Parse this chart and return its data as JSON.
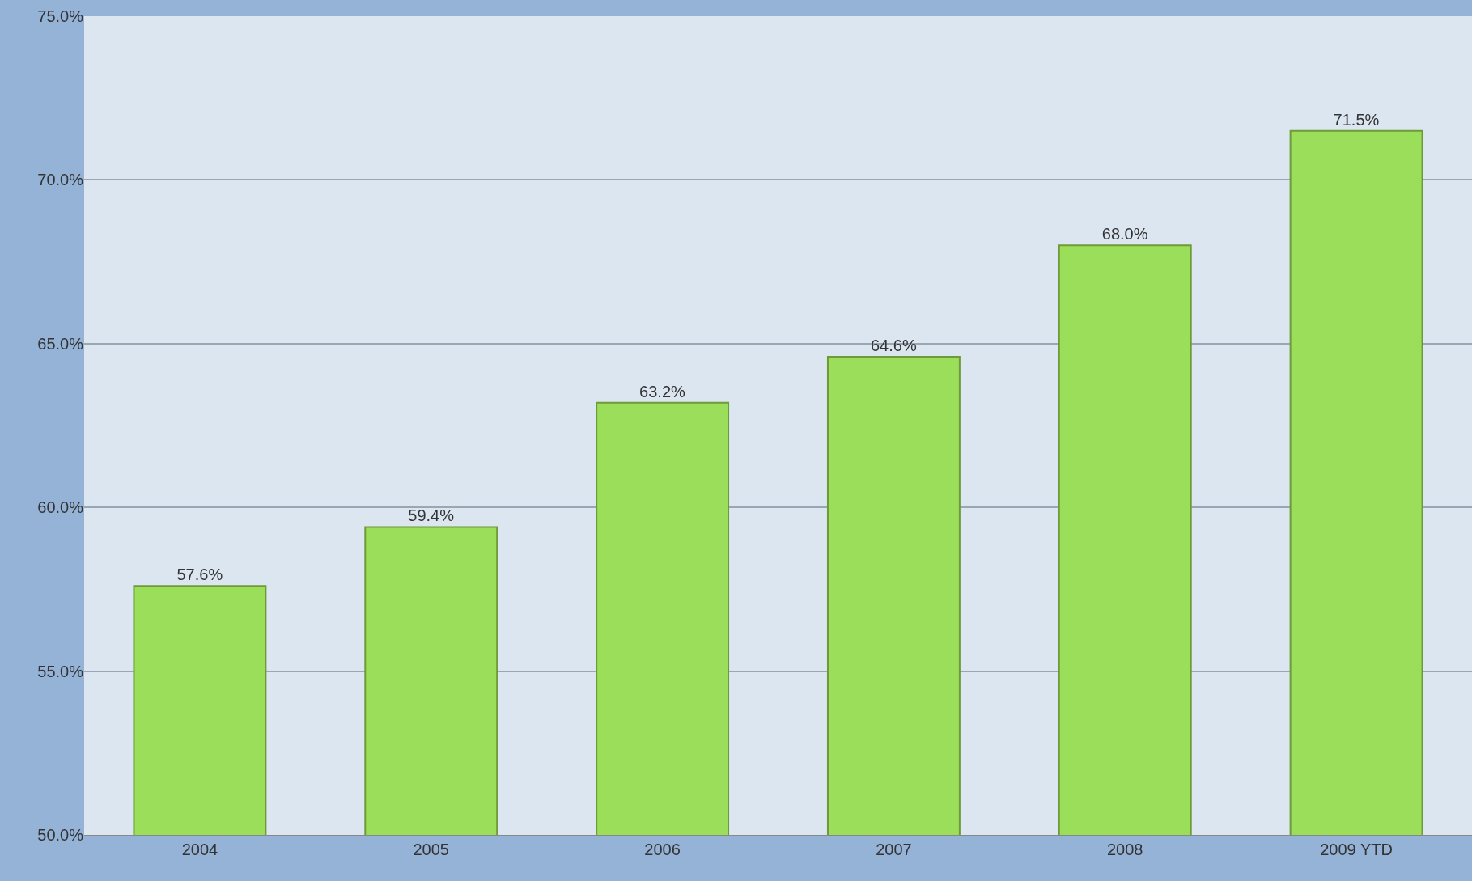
{
  "chart_data": {
    "type": "bar",
    "categories": [
      "2004",
      "2005",
      "2006",
      "2007",
      "2008",
      "2009 YTD"
    ],
    "values": [
      57.6,
      59.4,
      63.2,
      64.6,
      68.0,
      71.5
    ],
    "value_labels": [
      "57.6%",
      "59.4%",
      "63.2%",
      "64.6%",
      "68.0%",
      "71.5%"
    ],
    "color": "#9bde5a",
    "ylim": [
      50,
      75
    ],
    "yticks": [
      {
        "value": 50,
        "label": "50.0%"
      },
      {
        "value": 55,
        "label": "55.0%"
      },
      {
        "value": 60,
        "label": "60.0%"
      },
      {
        "value": 65,
        "label": "65.0%"
      },
      {
        "value": 70,
        "label": "70.0%"
      },
      {
        "value": 75,
        "label": "75.0%"
      }
    ],
    "grid": "y",
    "legend": false
  }
}
